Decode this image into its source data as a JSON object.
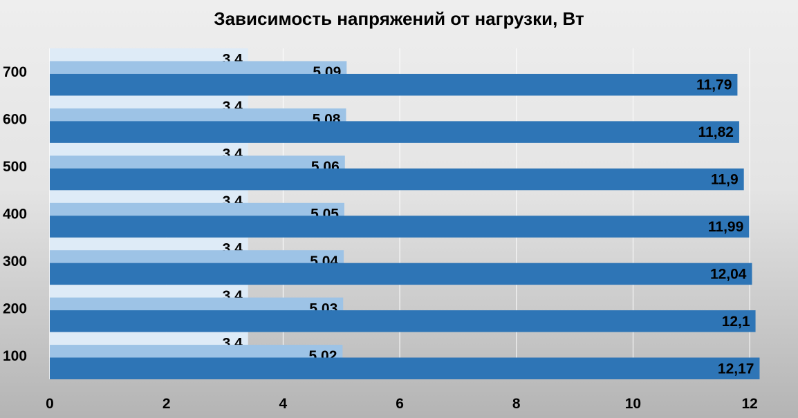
{
  "chart_data": {
    "type": "bar",
    "orientation": "horizontal",
    "title": "Зависимость напряжений от нагрузки, Вт",
    "categories": [
      "100",
      "200",
      "300",
      "400",
      "500",
      "600",
      "700"
    ],
    "series": [
      {
        "values": [
          3.4,
          3.4,
          3.4,
          3.4,
          3.4,
          3.4,
          3.4
        ],
        "labels": [
          "3,4",
          "3,4",
          "3,4",
          "3,4",
          "3,4",
          "3,4",
          "3,4"
        ],
        "color": "#deebf7"
      },
      {
        "values": [
          5.02,
          5.03,
          5.04,
          5.05,
          5.06,
          5.08,
          5.09
        ],
        "labels": [
          "5,02",
          "5,03",
          "5,04",
          "5,05",
          "5,06",
          "5,08",
          "5,09"
        ],
        "color": "#9dc3e6"
      },
      {
        "values": [
          12.17,
          12.1,
          12.04,
          11.99,
          11.9,
          11.82,
          11.79
        ],
        "labels": [
          "12,17",
          "12,1",
          "12,04",
          "11,99",
          "11,9",
          "11,82",
          "11,79"
        ],
        "color": "#2e75b6"
      }
    ],
    "xlim": [
      0,
      12.2
    ],
    "xticks": [
      0,
      2,
      4,
      6,
      8,
      10,
      12
    ],
    "grid": true,
    "legend": "none"
  }
}
